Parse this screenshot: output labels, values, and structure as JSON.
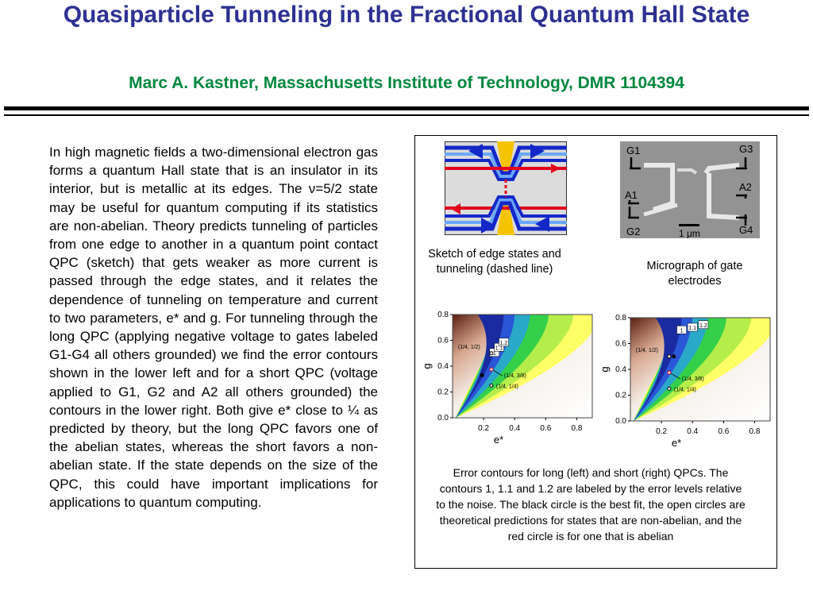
{
  "title": "Quasiparticle Tunneling in the Fractional Quantum Hall State",
  "subtitle": "Marc A. Kastner, Massachusetts Institute of Technology, DMR 1104394",
  "body": "In high magnetic fields a two-dimensional electron gas forms a quantum Hall state that is an insulator in its interior, but is metallic at its edges.  The ν=5/2 state may be useful for quantum computing if its statistics are non-abelian.  Theory predicts tunneling of particles from one edge to another in a quantum point contact QPC (sketch) that gets weaker as more current is passed through the edge states, and it relates the dependence of tunneling on temperature and current to two parameters, e* and g.  For tunneling through the long QPC (applying negative voltage to gates labeled G1-G4 all others grounded) we find the error contours shown in the lower left and for a short QPC (voltage applied to G1, G2 and A2 all others grounded) the contours in the lower right.  Both give e* close to ¼ as predicted by theory, but the long QPC favors one of the abelian states, whereas the short favors a non-abelian state.  If the state depends on the size of the QPC, this could have important implications for applications to quantum computing.",
  "figures": {
    "sketch_caption": "Sketch of edge states and tunneling (dashed line)",
    "micrograph_caption": "Micrograph of gate electrodes",
    "micrograph_labels": {
      "g1": "G1",
      "g2": "G2",
      "g3": "G3",
      "g4": "G4",
      "a1": "A1",
      "a2": "A2",
      "scale": "1 μm"
    },
    "plots_caption": "Error contours for long (left) and short (right) QPCs.  The contours 1, 1.1 and 1.2 are labeled by the error levels relative to the noise.  The black circle is the best fit, the open circles are theoretical predictions for states that are non-abelian, and the red circle is for one that is abelian"
  },
  "chart_data": [
    {
      "type": "heatmap",
      "title": "",
      "xlabel": "e*",
      "ylabel": "g",
      "xlim": [
        0,
        0.9
      ],
      "ylim": [
        0,
        0.8
      ],
      "xticks": [
        "0.2",
        "0.4",
        "0.6",
        "0.8"
      ],
      "yticks": [
        "0.0",
        "0.2",
        "0.4",
        "0.6",
        "0.8"
      ],
      "contour_labels": [
        "1",
        "1.1",
        "1.2"
      ],
      "points": [
        {
          "label": "(1/4, 1/2)",
          "x": 0.25,
          "y": 0.5,
          "kind": "non-abelian"
        },
        {
          "label": "(1/4, 3/8)",
          "x": 0.25,
          "y": 0.375,
          "kind": "abelian"
        },
        {
          "label": "(1/4, 1/4)",
          "x": 0.25,
          "y": 0.25,
          "kind": "non-abelian"
        },
        {
          "label": "",
          "x": 0.19,
          "y": 0.33,
          "kind": "best fit"
        }
      ],
      "colors": {
        "best": "#000000",
        "abelian": "#e3001b"
      }
    },
    {
      "type": "heatmap",
      "title": "",
      "xlabel": "e*",
      "ylabel": "g",
      "xlim": [
        0,
        0.9
      ],
      "ylim": [
        0,
        0.8
      ],
      "xticks": [
        "0.2",
        "0.4",
        "0.6",
        "0.8"
      ],
      "yticks": [
        "0.0",
        "0.2",
        "0.4",
        "0.6",
        "0.8"
      ],
      "contour_labels": [
        "1",
        "1.1",
        "1.2"
      ],
      "points": [
        {
          "label": "(1/4, 1/2)",
          "x": 0.25,
          "y": 0.5,
          "kind": "non-abelian"
        },
        {
          "label": "(1/4, 3/8)",
          "x": 0.25,
          "y": 0.375,
          "kind": "abelian"
        },
        {
          "label": "(1/4, 1/4)",
          "x": 0.25,
          "y": 0.25,
          "kind": "non-abelian"
        },
        {
          "label": "",
          "x": 0.28,
          "y": 0.5,
          "kind": "best fit"
        }
      ],
      "colors": {
        "best": "#000000",
        "abelian": "#e3001b"
      }
    }
  ]
}
